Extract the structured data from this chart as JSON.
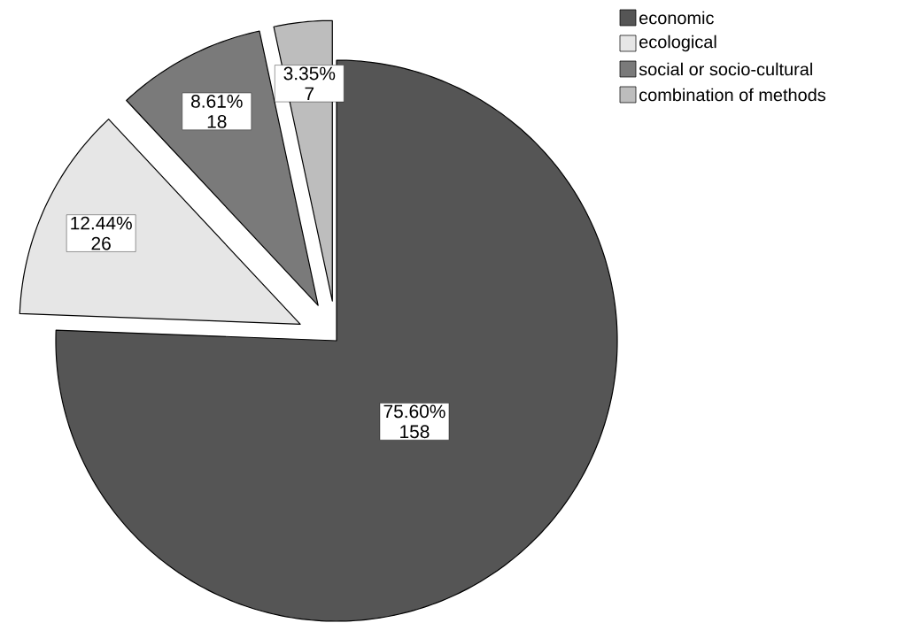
{
  "chart_data": {
    "type": "pie",
    "categories": [
      "economic",
      "ecological",
      "social or socio-cultural",
      "combination of methods"
    ],
    "values": [
      158,
      26,
      18,
      7
    ],
    "colors": [
      "#555555",
      "#e6e6e6",
      "#7a7a7a",
      "#bdbdbd"
    ],
    "value_labels": [
      "75.60% 158",
      "12.44% 26",
      "8.61% 18",
      "3.35% 7"
    ],
    "legend": "top right"
  }
}
